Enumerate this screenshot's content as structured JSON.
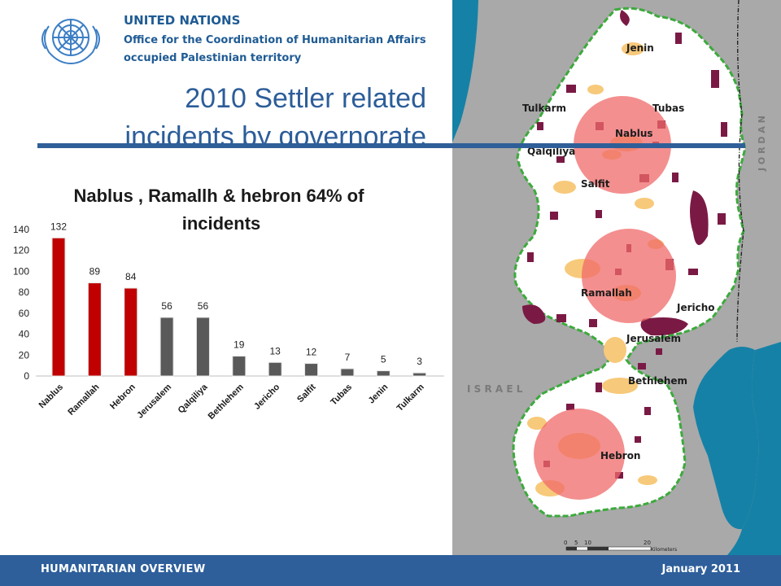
{
  "header": {
    "org": "UNITED NATIONS",
    "office": "Office for the Coordination of Humanitarian Affairs",
    "territory": "occupied Palestinian territory",
    "slide_title": "2010 Settler related incidents by governorate"
  },
  "chart_data": {
    "type": "bar",
    "title": "Nablus , Ramallh & hebron  64% of incidents",
    "categories": [
      "Nablus",
      "Ramallah",
      "Hebron",
      "Jerusalem",
      "Qalqiliya",
      "Bethlehem",
      "Jericho",
      "Salfit",
      "Tubas",
      "Jenin",
      "Tulkarm"
    ],
    "values": [
      132,
      89,
      84,
      56,
      56,
      19,
      13,
      12,
      7,
      5,
      3
    ],
    "highlighted": [
      true,
      true,
      true,
      false,
      false,
      false,
      false,
      false,
      false,
      false,
      false
    ],
    "ylim": [
      0,
      140
    ],
    "yticks": [
      0,
      20,
      40,
      60,
      80,
      100,
      120,
      140
    ],
    "grid": false,
    "colors": {
      "highlight": "#c00000",
      "other": "#595959"
    }
  },
  "map": {
    "labels": [
      "Jenin",
      "Tubas",
      "Tulkarm",
      "Nablus",
      "Qalqiliya",
      "Salfit",
      "Ramallah",
      "Jericho",
      "Jerusalem",
      "Bethlehem",
      "Hebron"
    ],
    "country_labels": {
      "jordan": "J O R D A N",
      "israel": "I S R A E L"
    },
    "scale": {
      "ticks": [
        "0",
        "5",
        "10",
        "20"
      ],
      "unit": "Kilometers"
    },
    "colors": {
      "land": "#ffffff",
      "surround": "#a9a9a9",
      "water": "#1681a6",
      "border": "#3caa3c",
      "settlement": "#7a1a44",
      "built": "#f7c97a",
      "highlight": "#f06a6a"
    }
  },
  "footer": {
    "left": "HUMANITARIAN OVERVIEW",
    "right": "January 2011"
  }
}
